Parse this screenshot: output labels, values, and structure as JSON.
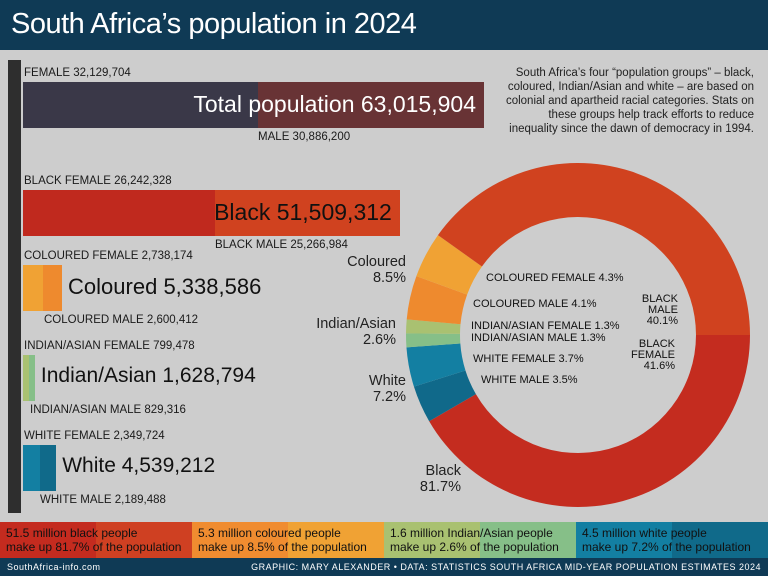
{
  "title": "South Africa’s population in 2024",
  "intro": "South Africa’s four “population groups” – black, coloured, Indian/Asian and white – are based on colonial and apartheid racial categories. Stats on these groups help track efforts to reduce inequality since the dawn of democracy in 1994.",
  "groups": [
    {
      "name": "Total population",
      "female_label": "FEMALE 32,129,704",
      "male_label": "MALE 30,886,200",
      "total_label": "Total population 63,015,904",
      "female": 32129704,
      "male": 30886200,
      "female_color": "#3a3848",
      "male_color": "#683335"
    },
    {
      "name": "Black",
      "female_label": "BLACK FEMALE 26,242,328",
      "male_label": "BLACK MALE 25,266,984",
      "total_label": "Black 51,509,312",
      "female": 26242328,
      "male": 25266984,
      "female_color": "#c0291e",
      "male_color": "#d0421f"
    },
    {
      "name": "Coloured",
      "female_label": "COLOURED FEMALE 2,738,174",
      "male_label": "COLOURED MALE 2,600,412",
      "total_label": "Coloured 5,338,586",
      "female": 2738174,
      "male": 2600412,
      "female_color": "#f0a234",
      "male_color": "#ee8a2e"
    },
    {
      "name": "Indian/Asian",
      "female_label": "INDIAN/ASIAN FEMALE 799,478",
      "male_label": "INDIAN/ASIAN MALE 829,316",
      "total_label": "Indian/Asian 1,628,794",
      "female": 799478,
      "male": 829316,
      "female_color": "#a9c171",
      "male_color": "#86bf88"
    },
    {
      "name": "White",
      "female_label": "WHITE FEMALE 2,349,724",
      "male_label": "WHITE MALE 2,189,488",
      "total_label": "White 4,539,212",
      "female": 2349724,
      "male": 2189488,
      "female_color": "#137fa2",
      "male_color": "#106a8a"
    }
  ],
  "chart_data": {
    "type": "pie",
    "variant": "donut",
    "slices": [
      {
        "label": "BLACK FEMALE",
        "value": 41.6,
        "color": "#c42c1f"
      },
      {
        "label": "WHITE MALE",
        "value": 3.5,
        "color": "#10698a"
      },
      {
        "label": "WHITE FEMALE",
        "value": 3.7,
        "color": "#137fa2"
      },
      {
        "label": "INDIAN/ASIAN MALE",
        "value": 1.3,
        "color": "#86bf88"
      },
      {
        "label": "INDIAN/ASIAN FEMALE",
        "value": 1.3,
        "color": "#a9c171"
      },
      {
        "label": "COLOURED MALE",
        "value": 4.1,
        "color": "#ee8a2e"
      },
      {
        "label": "COLOURED FEMALE",
        "value": 4.3,
        "color": "#f0a234"
      },
      {
        "label": "BLACK MALE",
        "value": 40.1,
        "color": "#d0421f"
      }
    ],
    "inner_labels": [
      "COLOURED FEMALE 4.3%",
      "COLOURED MALE 4.1%",
      "INDIAN/ASIAN FEMALE 1.3%",
      "INDIAN/ASIAN MALE 1.3%",
      "WHITE FEMALE 3.7%",
      "WHITE MALE 3.5%"
    ],
    "black_male_label": [
      "BLACK",
      "MALE",
      "40.1%"
    ],
    "black_female_label": [
      "BLACK",
      "FEMALE",
      "41.6%"
    ],
    "group_labels": [
      {
        "name": "Coloured",
        "pct": "8.5%"
      },
      {
        "name": "Indian/Asian",
        "pct": "2.6%"
      },
      {
        "name": "White",
        "pct": "7.2%"
      },
      {
        "name": "Black",
        "pct": "81.7%"
      }
    ]
  },
  "band": [
    {
      "line1": "51.5 million black people",
      "line2": "make up 81.7% of the population",
      "c1": "#c42b1f",
      "c2": "#cf4022"
    },
    {
      "line1": "5.3 million coloured people",
      "line2": "make up 8.5% of the population",
      "c1": "#f08c30",
      "c2": "#f0a234"
    },
    {
      "line1": "1.6 million Indian/Asian people",
      "line2": "make up 2.6% of the population",
      "c1": "#a9c171",
      "c2": "#86bf88"
    },
    {
      "line1": "4.5 million white people",
      "line2": "make up 7.2% of the population",
      "c1": "#137fa2",
      "c2": "#106a8a"
    }
  ],
  "footer": {
    "site": "SouthAfrica-info.com",
    "credit": "GRAPHIC: MARY ALEXANDER • DATA: STATISTICS SOUTH AFRICA MID-YEAR POPULATION ESTIMATES 2024"
  }
}
